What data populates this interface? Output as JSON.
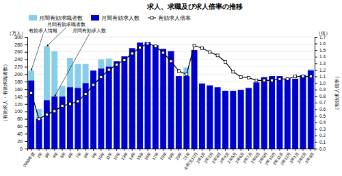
{
  "chart_data": {
    "type": "bar",
    "title": "求人、求職及び求人倍率の推移",
    "yunit": "（万人）",
    "y2unit": "（倍）",
    "ylabel": "（有効求人・有効求職者数）",
    "y2label": "（有効求人倍率）",
    "categories": [
      "2008年度",
      "2年",
      "3年",
      "4年",
      "5年",
      "6年",
      "7年",
      "8年",
      "9年",
      "10年",
      "11年",
      "12年",
      "13年",
      "14年",
      "15年",
      "16年",
      "17年",
      "18年",
      "19年",
      "20年",
      "21年",
      "令和元12月",
      "2年1月",
      "2年2月",
      "2年3月",
      "2年4月",
      "2年5月",
      "2年6月",
      "2年7月",
      "2年8月",
      "2年9月",
      "2年10月",
      "2年11月",
      "2年12月",
      "3年1月",
      "3年2月",
      "3年3月"
    ],
    "series": [
      {
        "name": "月間有効求職者数",
        "type": "bar",
        "color": "#87CEEB",
        "values": [
          210,
          107,
          275,
          262,
          168,
          243,
          228,
          228,
          205,
          240,
          242,
          213,
          198,
          188,
          173,
          170,
          165,
          168,
          173,
          195,
          218,
          255,
          175,
          152,
          165,
          150,
          150,
          157,
          163,
          170,
          168,
          168,
          168,
          165,
          165,
          198,
          213
        ]
      },
      {
        "name": "月間有効求人数",
        "type": "bar",
        "color": "#0000CD",
        "values": [
          183,
          80,
          130,
          140,
          140,
          165,
          163,
          176,
          210,
          215,
          220,
          235,
          248,
          270,
          285,
          286,
          278,
          268,
          262,
          195,
          195,
          265,
          175,
          170,
          165,
          155,
          155,
          158,
          163,
          178,
          192,
          195,
          195,
          188,
          188,
          197,
          210
        ]
      },
      {
        "name": "有効求人倍率",
        "type": "line",
        "axis": "y2",
        "color": "#000000",
        "marker": "square",
        "values": [
          0.85,
          0.45,
          0.52,
          0.57,
          0.65,
          0.68,
          0.72,
          0.83,
          0.97,
          1.09,
          1.2,
          1.28,
          1.35,
          1.45,
          1.54,
          1.6,
          1.56,
          1.46,
          1.33,
          1.18,
          1.13,
          1.57,
          1.53,
          1.47,
          1.42,
          1.32,
          1.17,
          1.09,
          1.08,
          1.04,
          1.04,
          1.04,
          1.06,
          1.06,
          1.1,
          1.1,
          1.1
        ]
      }
    ],
    "ylim": [
      0,
      300
    ],
    "yticks": [
      0,
      20,
      40,
      60,
      80,
      100,
      120,
      140,
      160,
      180,
      200,
      220,
      240,
      260,
      280,
      300
    ],
    "y2lim": [
      0,
      1.7
    ],
    "y2ticks": [
      {
        "value": 0,
        "label": "0.0"
      },
      0.1,
      0.2,
      0.3,
      0.4,
      0.5,
      0.6,
      0.7,
      0.8,
      0.9,
      {
        "value": 1,
        "label": "1.0"
      },
      1.1,
      1.2,
      1.3,
      1.4,
      1.5,
      1.6,
      1.7
    ],
    "annotations": [
      {
        "text": "有効求人情報",
        "category": "2008年度",
        "value": 210
      },
      {
        "text": "月間有効求職者数",
        "category": "3年",
        "value": 275
      },
      {
        "text": "月間有効求人数",
        "category": "4年",
        "value": 140
      }
    ],
    "grid": true,
    "legend": "top-left"
  }
}
